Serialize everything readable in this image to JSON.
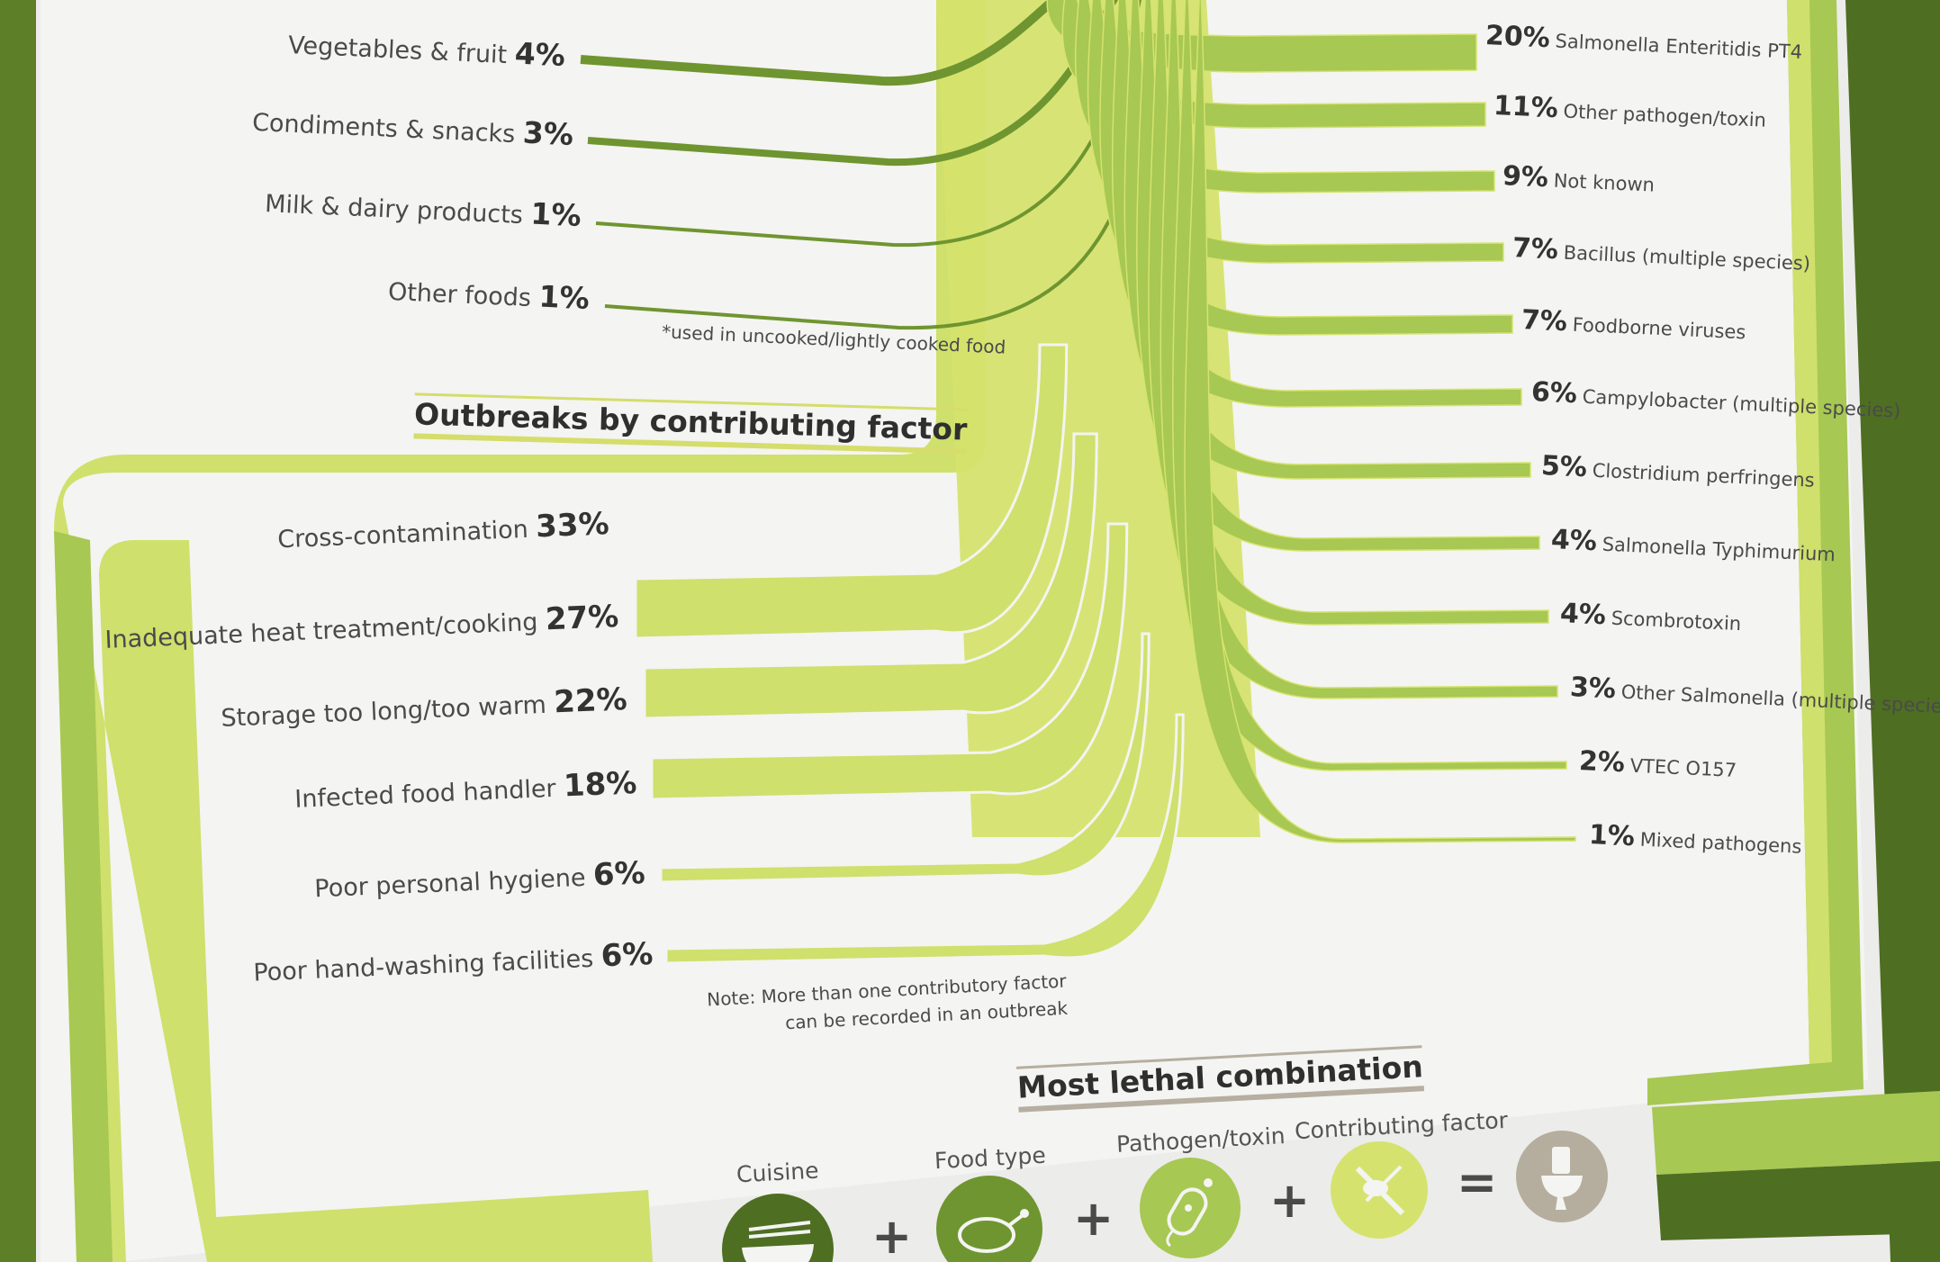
{
  "foods": [
    {
      "name": "Vegetables & fruit",
      "pct": "4%"
    },
    {
      "name": "Condiments & snacks",
      "pct": "3%"
    },
    {
      "name": "Milk & dairy products",
      "pct": "1%"
    },
    {
      "name": "Other foods",
      "pct": "1%"
    }
  ],
  "food_note": "*used in uncooked/lightly cooked food",
  "factor_heading": "Outbreaks by contributing factor",
  "factors": [
    {
      "name": "Cross-contamination",
      "pct": "33%"
    },
    {
      "name": "Inadequate heat treatment/cooking",
      "pct": "27%"
    },
    {
      "name": "Storage too long/too warm",
      "pct": "22%"
    },
    {
      "name": "Infected food handler",
      "pct": "18%"
    },
    {
      "name": "Poor personal hygiene",
      "pct": "6%"
    },
    {
      "name": "Poor hand-washing facilities",
      "pct": "6%"
    }
  ],
  "factor_note_line1": "Note: More than one contributory factor",
  "factor_note_line2": "can be recorded in an outbreak",
  "pathogens": [
    {
      "pct": "20%",
      "name": "Salmonella Enteritidis PT4"
    },
    {
      "pct": "11%",
      "name": "Other pathogen/toxin"
    },
    {
      "pct": "9%",
      "name": "Not known"
    },
    {
      "pct": "7%",
      "name": "Bacillus (multiple species)"
    },
    {
      "pct": "7%",
      "name": "Foodborne viruses"
    },
    {
      "pct": "6%",
      "name": "Campylobacter (multiple species)"
    },
    {
      "pct": "5%",
      "name": "Clostridium perfringens"
    },
    {
      "pct": "4%",
      "name": "Salmonella Typhimurium"
    },
    {
      "pct": "4%",
      "name": "Scombrotoxin"
    },
    {
      "pct": "3%",
      "name": "Other Salmonella (multiple species)"
    },
    {
      "pct": "2%",
      "name": "VTEC O157"
    },
    {
      "pct": "1%",
      "name": "Mixed pathogens"
    }
  ],
  "combo": {
    "heading": "Most lethal combination",
    "labels": [
      "Cuisine",
      "Food type",
      "Pathogen/toxin",
      "Contributing factor"
    ],
    "icons": [
      "rice-bowl-icon",
      "roast-chicken-icon",
      "bacterium-icon",
      "knife-chicken-icon",
      "toilet-icon"
    ],
    "plus": "+",
    "equals": "="
  },
  "colors": {
    "background": "#ececea",
    "paper": "#f4f4f2",
    "dark_green": "#4e6e22",
    "mid_green": "#6f9530",
    "light_green": "#a7c852",
    "pale_green": "#cfe06c",
    "icon_grey": "#b5ae9e"
  }
}
